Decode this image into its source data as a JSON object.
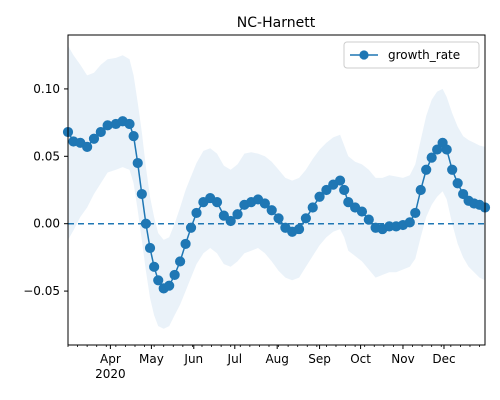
{
  "chart_data": {
    "type": "line",
    "title": "NC-Harnett",
    "xlabel": "",
    "ylabel": "",
    "x_range": [
      "2020-03-01",
      "2020-12-31"
    ],
    "ylim": [
      -0.09,
      0.14
    ],
    "y_ticks": [
      -0.05,
      0.0,
      0.05,
      0.1
    ],
    "y_tick_labels": [
      "−0.05",
      "0.00",
      "0.05",
      "0.10"
    ],
    "x_ticks": [
      {
        "date": "2020-04-01",
        "label": "Apr",
        "sublabel": "2020"
      },
      {
        "date": "2020-05-01",
        "label": "May"
      },
      {
        "date": "2020-06-01",
        "label": "Jun"
      },
      {
        "date": "2020-07-01",
        "label": "Jul"
      },
      {
        "date": "2020-08-01",
        "label": "Aug"
      },
      {
        "date": "2020-09-01",
        "label": "Sep"
      },
      {
        "date": "2020-10-01",
        "label": "Oct"
      },
      {
        "date": "2020-11-01",
        "label": "Nov"
      },
      {
        "date": "2020-12-01",
        "label": "Dec"
      }
    ],
    "legend": {
      "position": "upper-right",
      "entries": [
        "growth_rate"
      ]
    },
    "grid": false,
    "reference_line": {
      "y": 0.0,
      "style": "dashed"
    },
    "series": [
      {
        "name": "growth_rate",
        "color": "#1f77b4",
        "band_color": "#dce9f5",
        "points": [
          {
            "x": "2020-03-01",
            "y": 0.068,
            "lo": -0.012,
            "hi": 0.132
          },
          {
            "x": "2020-03-05",
            "y": 0.061,
            "lo": -0.005,
            "hi": 0.125
          },
          {
            "x": "2020-03-10",
            "y": 0.06,
            "lo": 0.005,
            "hi": 0.118
          },
          {
            "x": "2020-03-15",
            "y": 0.057,
            "lo": 0.012,
            "hi": 0.11
          },
          {
            "x": "2020-03-20",
            "y": 0.063,
            "lo": 0.022,
            "hi": 0.112
          },
          {
            "x": "2020-03-25",
            "y": 0.068,
            "lo": 0.03,
            "hi": 0.118
          },
          {
            "x": "2020-03-30",
            "y": 0.073,
            "lo": 0.038,
            "hi": 0.122
          },
          {
            "x": "2020-04-05",
            "y": 0.074,
            "lo": 0.04,
            "hi": 0.123
          },
          {
            "x": "2020-04-10",
            "y": 0.076,
            "lo": 0.042,
            "hi": 0.125
          },
          {
            "x": "2020-04-15",
            "y": 0.074,
            "lo": 0.04,
            "hi": 0.122
          },
          {
            "x": "2020-04-18",
            "y": 0.065,
            "lo": 0.03,
            "hi": 0.11
          },
          {
            "x": "2020-04-21",
            "y": 0.045,
            "lo": 0.01,
            "hi": 0.09
          },
          {
            "x": "2020-04-24",
            "y": 0.022,
            "lo": -0.012,
            "hi": 0.068
          },
          {
            "x": "2020-04-27",
            "y": 0.0,
            "lo": -0.035,
            "hi": 0.042
          },
          {
            "x": "2020-04-30",
            "y": -0.018,
            "lo": -0.055,
            "hi": 0.02
          },
          {
            "x": "2020-05-03",
            "y": -0.032,
            "lo": -0.068,
            "hi": 0.005
          },
          {
            "x": "2020-05-06",
            "y": -0.042,
            "lo": -0.076,
            "hi": -0.007
          },
          {
            "x": "2020-05-10",
            "y": -0.048,
            "lo": -0.078,
            "hi": -0.012
          },
          {
            "x": "2020-05-14",
            "y": -0.046,
            "lo": -0.076,
            "hi": -0.01
          },
          {
            "x": "2020-05-18",
            "y": -0.038,
            "lo": -0.068,
            "hi": 0.0
          },
          {
            "x": "2020-05-22",
            "y": -0.028,
            "lo": -0.06,
            "hi": 0.012
          },
          {
            "x": "2020-05-26",
            "y": -0.015,
            "lo": -0.05,
            "hi": 0.025
          },
          {
            "x": "2020-05-30",
            "y": -0.003,
            "lo": -0.04,
            "hi": 0.035
          },
          {
            "x": "2020-06-03",
            "y": 0.008,
            "lo": -0.03,
            "hi": 0.045
          },
          {
            "x": "2020-06-08",
            "y": 0.016,
            "lo": -0.022,
            "hi": 0.054
          },
          {
            "x": "2020-06-13",
            "y": 0.019,
            "lo": -0.018,
            "hi": 0.056
          },
          {
            "x": "2020-06-18",
            "y": 0.016,
            "lo": -0.022,
            "hi": 0.052
          },
          {
            "x": "2020-06-23",
            "y": 0.006,
            "lo": -0.03,
            "hi": 0.043
          },
          {
            "x": "2020-06-28",
            "y": 0.002,
            "lo": -0.032,
            "hi": 0.04
          },
          {
            "x": "2020-07-03",
            "y": 0.007,
            "lo": -0.028,
            "hi": 0.044
          },
          {
            "x": "2020-07-08",
            "y": 0.014,
            "lo": -0.022,
            "hi": 0.052
          },
          {
            "x": "2020-07-13",
            "y": 0.016,
            "lo": -0.02,
            "hi": 0.053
          },
          {
            "x": "2020-07-18",
            "y": 0.018,
            "lo": -0.018,
            "hi": 0.052
          },
          {
            "x": "2020-07-23",
            "y": 0.015,
            "lo": -0.022,
            "hi": 0.05
          },
          {
            "x": "2020-07-28",
            "y": 0.01,
            "lo": -0.028,
            "hi": 0.046
          },
          {
            "x": "2020-08-02",
            "y": 0.004,
            "lo": -0.035,
            "hi": 0.04
          },
          {
            "x": "2020-08-07",
            "y": -0.003,
            "lo": -0.04,
            "hi": 0.034
          },
          {
            "x": "2020-08-12",
            "y": -0.006,
            "lo": -0.042,
            "hi": 0.032
          },
          {
            "x": "2020-08-17",
            "y": -0.004,
            "lo": -0.04,
            "hi": 0.034
          },
          {
            "x": "2020-08-22",
            "y": 0.004,
            "lo": -0.032,
            "hi": 0.04
          },
          {
            "x": "2020-08-27",
            "y": 0.012,
            "lo": -0.024,
            "hi": 0.048
          },
          {
            "x": "2020-09-01",
            "y": 0.02,
            "lo": -0.016,
            "hi": 0.055
          },
          {
            "x": "2020-09-06",
            "y": 0.025,
            "lo": -0.01,
            "hi": 0.06
          },
          {
            "x": "2020-09-11",
            "y": 0.029,
            "lo": -0.006,
            "hi": 0.064
          },
          {
            "x": "2020-09-16",
            "y": 0.032,
            "lo": -0.004,
            "hi": 0.066
          },
          {
            "x": "2020-09-19",
            "y": 0.025,
            "lo": -0.01,
            "hi": 0.058
          },
          {
            "x": "2020-09-22",
            "y": 0.016,
            "lo": -0.02,
            "hi": 0.05
          },
          {
            "x": "2020-09-27",
            "y": 0.012,
            "lo": -0.024,
            "hi": 0.046
          },
          {
            "x": "2020-10-02",
            "y": 0.009,
            "lo": -0.028,
            "hi": 0.044
          },
          {
            "x": "2020-10-07",
            "y": 0.003,
            "lo": -0.034,
            "hi": 0.04
          },
          {
            "x": "2020-10-12",
            "y": -0.003,
            "lo": -0.04,
            "hi": 0.034
          },
          {
            "x": "2020-10-17",
            "y": -0.004,
            "lo": -0.038,
            "hi": 0.034
          },
          {
            "x": "2020-10-22",
            "y": -0.002,
            "lo": -0.036,
            "hi": 0.036
          },
          {
            "x": "2020-10-27",
            "y": -0.002,
            "lo": -0.036,
            "hi": 0.035
          },
          {
            "x": "2020-11-01",
            "y": -0.001,
            "lo": -0.034,
            "hi": 0.034
          },
          {
            "x": "2020-11-06",
            "y": 0.001,
            "lo": -0.032,
            "hi": 0.036
          },
          {
            "x": "2020-11-10",
            "y": 0.008,
            "lo": -0.026,
            "hi": 0.044
          },
          {
            "x": "2020-11-14",
            "y": 0.025,
            "lo": -0.01,
            "hi": 0.062
          },
          {
            "x": "2020-11-18",
            "y": 0.04,
            "lo": 0.005,
            "hi": 0.08
          },
          {
            "x": "2020-11-22",
            "y": 0.049,
            "lo": 0.014,
            "hi": 0.092
          },
          {
            "x": "2020-11-26",
            "y": 0.055,
            "lo": 0.02,
            "hi": 0.098
          },
          {
            "x": "2020-11-30",
            "y": 0.06,
            "lo": 0.024,
            "hi": 0.1
          },
          {
            "x": "2020-12-03",
            "y": 0.055,
            "lo": 0.018,
            "hi": 0.094
          },
          {
            "x": "2020-12-07",
            "y": 0.04,
            "lo": 0.0,
            "hi": 0.082
          },
          {
            "x": "2020-12-11",
            "y": 0.03,
            "lo": -0.015,
            "hi": 0.072
          },
          {
            "x": "2020-12-15",
            "y": 0.022,
            "lo": -0.025,
            "hi": 0.065
          },
          {
            "x": "2020-12-19",
            "y": 0.017,
            "lo": -0.032,
            "hi": 0.062
          },
          {
            "x": "2020-12-23",
            "y": 0.015,
            "lo": -0.036,
            "hi": 0.06
          },
          {
            "x": "2020-12-27",
            "y": 0.014,
            "lo": -0.04,
            "hi": 0.058
          },
          {
            "x": "2020-12-31",
            "y": 0.012,
            "lo": -0.042,
            "hi": 0.057
          }
        ]
      }
    ]
  }
}
